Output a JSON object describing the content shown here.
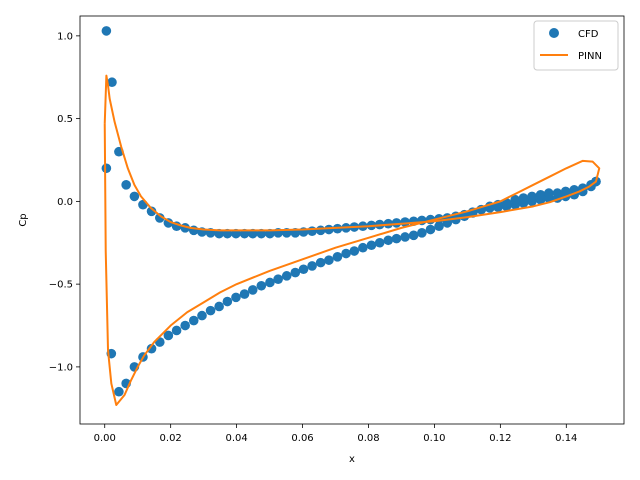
{
  "chart_data": {
    "type": "scatter",
    "xlabel": "x",
    "ylabel": "Cp",
    "xlim": [
      -0.0075,
      0.1575
    ],
    "ylim": [
      -1.345,
      1.12
    ],
    "xticks": [
      0.0,
      0.02,
      0.04,
      0.06,
      0.08,
      0.1,
      0.12,
      0.14
    ],
    "xtick_labels": [
      "0.00",
      "0.02",
      "0.04",
      "0.06",
      "0.08",
      "0.10",
      "0.12",
      "0.14"
    ],
    "yticks": [
      -1.0,
      -0.5,
      0.0,
      0.5,
      1.0
    ],
    "ytick_labels": [
      "−1.0",
      "−0.5",
      "0.0",
      "0.5",
      "1.0"
    ],
    "grid": false,
    "legend_position": "top-right",
    "series": [
      {
        "name": "CFD",
        "kind": "scatter",
        "color": "#1f77b4",
        "upper": {
          "x": [
            0.0005,
            0.0022,
            0.0043,
            0.0065,
            0.009,
            0.0116,
            0.0142,
            0.0167,
            0.0193,
            0.0218,
            0.0244,
            0.027,
            0.0295,
            0.0321,
            0.0347,
            0.0372,
            0.0398,
            0.0424,
            0.0449,
            0.0475,
            0.0501,
            0.0526,
            0.0552,
            0.0578,
            0.0603,
            0.0629,
            0.0655,
            0.068,
            0.0706,
            0.0732,
            0.0757,
            0.0783,
            0.0809,
            0.0834,
            0.086,
            0.0885,
            0.0911,
            0.0937,
            0.0962,
            0.0988,
            0.1014,
            0.1039,
            0.1065,
            0.1091,
            0.1116,
            0.1142,
            0.1168,
            0.1193,
            0.1219,
            0.1245,
            0.127,
            0.1296,
            0.1322,
            0.1347,
            0.1373,
            0.1398,
            0.1424,
            0.145,
            0.1475,
            0.149
          ],
          "y": [
            1.03,
            0.72,
            0.3,
            0.1,
            0.03,
            -0.02,
            -0.06,
            -0.1,
            -0.13,
            -0.15,
            -0.16,
            -0.175,
            -0.185,
            -0.19,
            -0.195,
            -0.195,
            -0.195,
            -0.195,
            -0.195,
            -0.195,
            -0.195,
            -0.19,
            -0.19,
            -0.19,
            -0.185,
            -0.18,
            -0.175,
            -0.17,
            -0.165,
            -0.16,
            -0.155,
            -0.15,
            -0.145,
            -0.14,
            -0.135,
            -0.13,
            -0.125,
            -0.12,
            -0.115,
            -0.11,
            -0.105,
            -0.1,
            -0.09,
            -0.08,
            -0.065,
            -0.05,
            -0.04,
            -0.035,
            -0.03,
            -0.02,
            -0.01,
            0.0,
            0.01,
            0.02,
            0.02,
            0.03,
            0.04,
            0.06,
            0.09,
            0.12
          ]
        },
        "lower": {
          "x": [
            0.0005,
            0.002,
            0.0043,
            0.0065,
            0.009,
            0.0116,
            0.0142,
            0.0167,
            0.0193,
            0.0218,
            0.0244,
            0.027,
            0.0295,
            0.0321,
            0.0347,
            0.0372,
            0.0398,
            0.0424,
            0.0449,
            0.0475,
            0.0501,
            0.0526,
            0.0552,
            0.0578,
            0.0603,
            0.0629,
            0.0655,
            0.068,
            0.0706,
            0.0732,
            0.0757,
            0.0783,
            0.0809,
            0.0834,
            0.086,
            0.0885,
            0.0911,
            0.0937,
            0.0962,
            0.0988,
            0.1014,
            0.1039,
            0.1065,
            0.1091,
            0.1116,
            0.1142,
            0.1168,
            0.1193,
            0.1219,
            0.1245,
            0.127,
            0.1296,
            0.1322,
            0.1347,
            0.1373,
            0.1398,
            0.1424,
            0.145,
            0.1475,
            0.149
          ],
          "y": [
            0.2,
            -0.92,
            -1.15,
            -1.1,
            -1.0,
            -0.94,
            -0.89,
            -0.85,
            -0.81,
            -0.78,
            -0.75,
            -0.72,
            -0.69,
            -0.66,
            -0.635,
            -0.605,
            -0.58,
            -0.56,
            -0.535,
            -0.51,
            -0.49,
            -0.47,
            -0.45,
            -0.43,
            -0.41,
            -0.39,
            -0.37,
            -0.355,
            -0.335,
            -0.315,
            -0.3,
            -0.28,
            -0.265,
            -0.25,
            -0.235,
            -0.225,
            -0.215,
            -0.205,
            -0.19,
            -0.17,
            -0.15,
            -0.13,
            -0.11,
            -0.09,
            -0.07,
            -0.05,
            -0.03,
            -0.02,
            -0.01,
            0.01,
            0.02,
            0.03,
            0.04,
            0.05,
            0.05,
            0.06,
            0.07,
            0.08,
            0.1,
            0.12
          ]
        }
      },
      {
        "name": "PINN",
        "kind": "line",
        "color": "#ff7f0e",
        "x": [
          0.0,
          0.0005,
          0.001,
          0.0015,
          0.003,
          0.005,
          0.007,
          0.009,
          0.011,
          0.014,
          0.017,
          0.02,
          0.023,
          0.026,
          0.03,
          0.035,
          0.04,
          0.045,
          0.05,
          0.06,
          0.07,
          0.08,
          0.09,
          0.1,
          0.11,
          0.12,
          0.13,
          0.135,
          0.14,
          0.144,
          0.147,
          0.149,
          0.15,
          0.148,
          0.145,
          0.14,
          0.135,
          0.13,
          0.125,
          0.12,
          0.115,
          0.11,
          0.1,
          0.09,
          0.08,
          0.07,
          0.06,
          0.05,
          0.04,
          0.035,
          0.03,
          0.025,
          0.02,
          0.015,
          0.012,
          0.01,
          0.008,
          0.006,
          0.0035,
          0.002,
          0.001,
          0.0003,
          0.0
        ],
        "y": [
          0.47,
          0.76,
          0.7,
          0.62,
          0.48,
          0.33,
          0.2,
          0.1,
          0.03,
          -0.04,
          -0.09,
          -0.125,
          -0.145,
          -0.16,
          -0.17,
          -0.175,
          -0.175,
          -0.175,
          -0.175,
          -0.17,
          -0.16,
          -0.15,
          -0.135,
          -0.12,
          -0.095,
          -0.065,
          -0.03,
          -0.005,
          0.03,
          0.06,
          0.09,
          0.12,
          0.2,
          0.24,
          0.245,
          0.2,
          0.15,
          0.1,
          0.05,
          0.0,
          -0.03,
          -0.06,
          -0.11,
          -0.16,
          -0.22,
          -0.28,
          -0.35,
          -0.42,
          -0.5,
          -0.55,
          -0.61,
          -0.67,
          -0.75,
          -0.85,
          -0.93,
          -1.0,
          -1.08,
          -1.17,
          -1.23,
          -1.1,
          -0.9,
          -0.3,
          0.47
        ]
      }
    ]
  }
}
